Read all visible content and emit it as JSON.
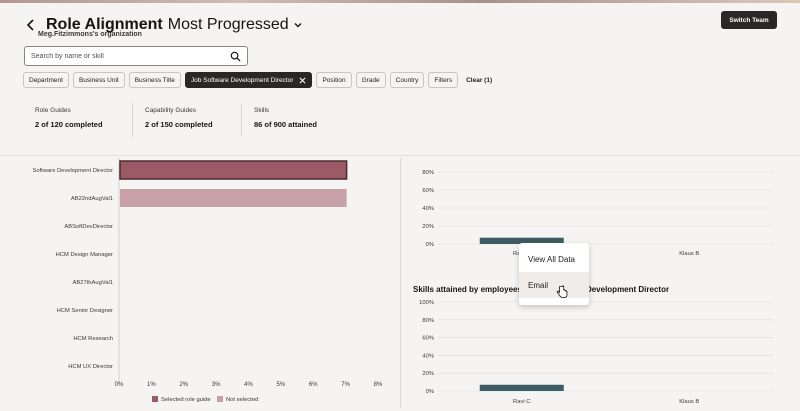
{
  "header": {
    "title": "Role Alignment",
    "view": "Most Progressed",
    "org": "Meg.Fitzimmons's organization",
    "switch_label": "Switch Team"
  },
  "search": {
    "placeholder": "Search by name or skill"
  },
  "filters": [
    {
      "label": "Department"
    },
    {
      "label": "Business Unit"
    },
    {
      "label": "Business Title"
    },
    {
      "label": "Job Software Development Director",
      "active": true
    },
    {
      "label": "Position"
    },
    {
      "label": "Grade"
    },
    {
      "label": "Country"
    },
    {
      "label": "Filters"
    }
  ],
  "clear_label": "Clear (1)",
  "stats": [
    {
      "label": "Role Guides",
      "value": "2 of 120 completed"
    },
    {
      "label": "Capability Guides",
      "value": "2 of 150 completed"
    },
    {
      "label": "Skills",
      "value": "86 of 900 attained"
    }
  ],
  "menu": {
    "items": [
      "View All Data",
      "Email"
    ]
  },
  "colors": {
    "selected": "#9c5a67",
    "not_selected": "#c8a0a7",
    "teal": "#3d5c63"
  },
  "chart_data": [
    {
      "type": "bar",
      "orientation": "horizontal",
      "title": "",
      "categories": [
        "Software Development Director",
        "AB22ndAugVal1",
        "ABSoftDevDirector",
        "HCM Design Manager",
        "AB27thAugVal1",
        "HCM Senior Designer",
        "HCM Research",
        "HCM UX Director"
      ],
      "values": [
        7,
        7,
        0,
        0,
        0,
        0,
        0,
        0
      ],
      "selected": [
        true,
        false,
        false,
        false,
        false,
        false,
        false,
        false
      ],
      "xlim": [
        0,
        8
      ],
      "xticks": [
        "0%",
        "1%",
        "2%",
        "3%",
        "4%",
        "5%",
        "6%",
        "7%",
        "8%"
      ],
      "legend": [
        "Selected role guide",
        "Not selected"
      ],
      "legend_position": "bottom"
    },
    {
      "type": "bar",
      "title": "",
      "categories": [
        "Ravi C",
        "Klaus B"
      ],
      "values": [
        7,
        0
      ],
      "ylim": [
        0,
        80
      ],
      "yticks": [
        "0%",
        "20%",
        "40%",
        "60%",
        "80%"
      ]
    },
    {
      "type": "bar",
      "title": "Skills attained by employees in Job Software Development Director",
      "categories": [
        "Ravi C",
        "Klaus B"
      ],
      "values": [
        7,
        0
      ],
      "ylim": [
        0,
        100
      ],
      "yticks": [
        "0%",
        "20%",
        "40%",
        "60%",
        "80%",
        "100%"
      ]
    }
  ]
}
